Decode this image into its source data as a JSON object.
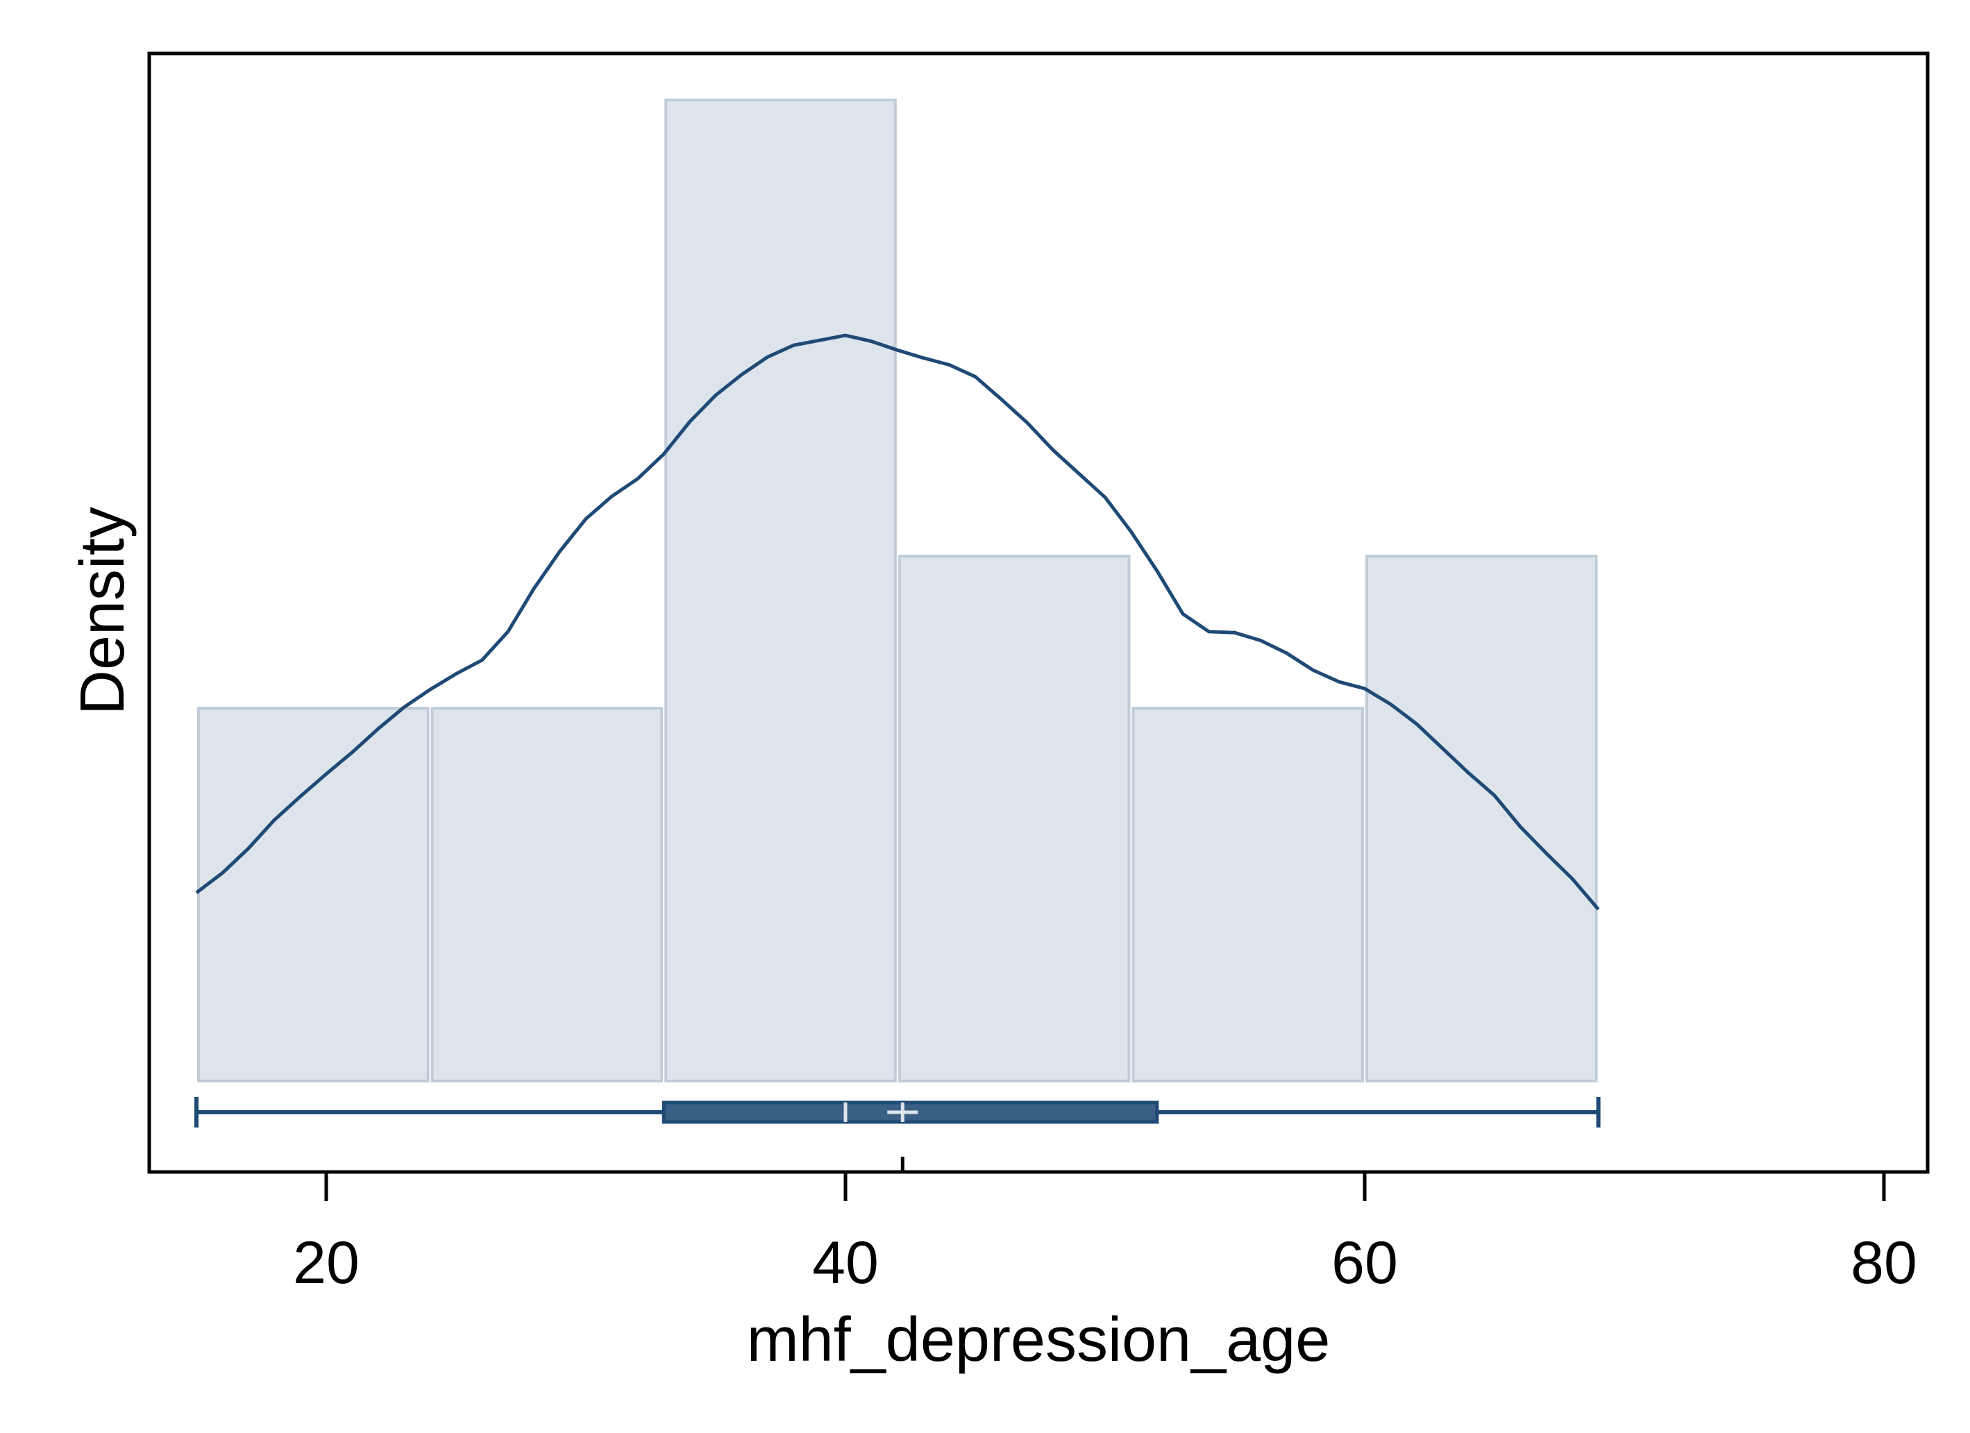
{
  "chart_data": {
    "type": "histogram",
    "title": "",
    "xlabel": "mhf_depression_age",
    "ylabel": "Density",
    "xlim": [
      13,
      82
    ],
    "x_ticks": [
      20,
      40,
      60,
      80
    ],
    "x_tick_labels": [
      "20",
      "40",
      "60",
      "80"
    ],
    "y_ticks_shown": false,
    "grid": false,
    "legend": "none",
    "histogram": {
      "bin_edges": [
        15,
        24,
        33,
        42,
        51,
        60,
        69
      ],
      "relative_heights": [
        0.38,
        0.38,
        1.0,
        0.535,
        0.38,
        0.535
      ]
    },
    "density_curve": {
      "x": [
        15,
        16,
        17,
        18,
        19,
        20,
        21,
        22,
        23,
        24,
        25,
        26,
        27,
        28,
        29,
        30,
        31,
        32,
        33,
        34,
        35,
        36,
        37,
        38,
        39,
        40,
        41,
        42,
        43,
        44,
        45,
        46,
        47,
        48,
        49,
        50,
        51,
        52,
        53,
        54,
        55,
        56,
        57,
        58,
        59,
        60,
        61,
        62,
        63,
        64,
        65,
        66,
        67,
        68,
        69
      ],
      "relative_y": [
        0.192,
        0.212,
        0.237,
        0.266,
        0.29,
        0.313,
        0.335,
        0.359,
        0.381,
        0.399,
        0.415,
        0.429,
        0.458,
        0.502,
        0.54,
        0.573,
        0.596,
        0.614,
        0.639,
        0.672,
        0.699,
        0.72,
        0.738,
        0.75,
        0.755,
        0.76,
        0.754,
        0.745,
        0.737,
        0.73,
        0.718,
        0.695,
        0.671,
        0.643,
        0.619,
        0.595,
        0.56,
        0.52,
        0.476,
        0.458,
        0.457,
        0.449,
        0.436,
        0.419,
        0.407,
        0.4,
        0.384,
        0.364,
        0.339,
        0.314,
        0.291,
        0.259,
        0.232,
        0.206,
        0.175
      ]
    },
    "box_plot": {
      "min": 15,
      "q1": 33,
      "median": 40,
      "mean": 42.2,
      "q3": 52,
      "max": 69
    },
    "colors": {
      "bar_fill": "#dde4ec",
      "bar_stroke": "#c0ccd7",
      "line": "#1f4a75",
      "box_fill": "#3a5f85",
      "frame": "#000000",
      "marker": "#dde4ec"
    }
  }
}
